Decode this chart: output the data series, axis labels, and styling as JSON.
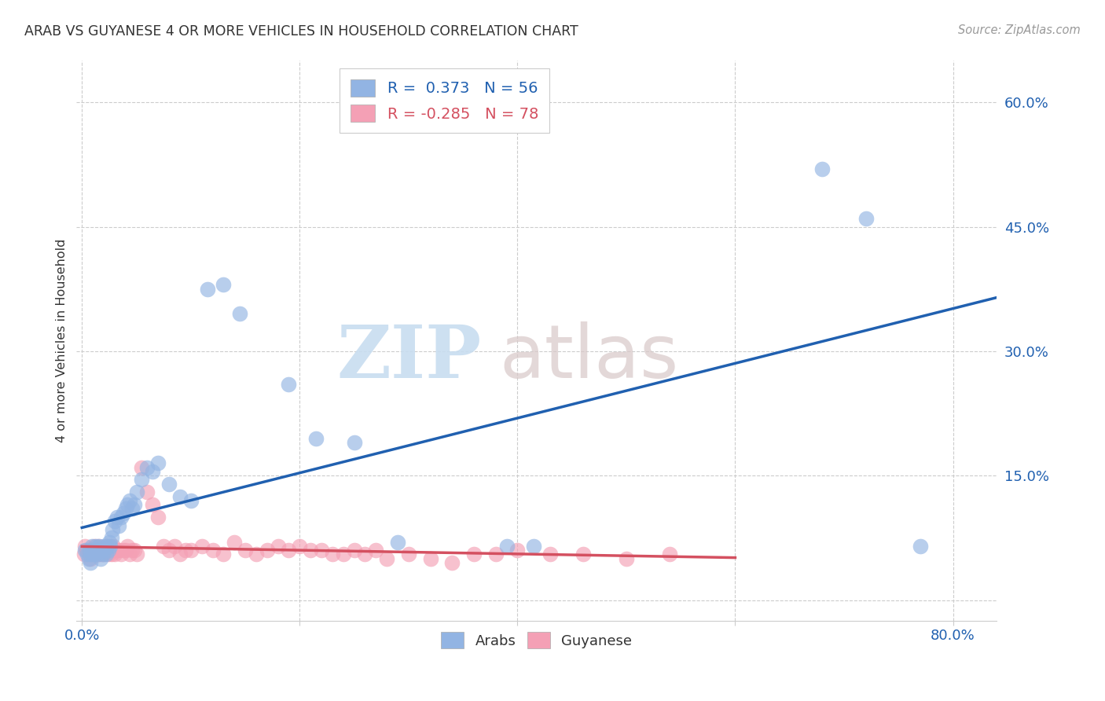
{
  "title": "ARAB VS GUYANESE 4 OR MORE VEHICLES IN HOUSEHOLD CORRELATION CHART",
  "source": "Source: ZipAtlas.com",
  "ylabel": "4 or more Vehicles in Household",
  "yticks": [
    0.0,
    0.15,
    0.3,
    0.45,
    0.6
  ],
  "ytick_labels": [
    "",
    "15.0%",
    "30.0%",
    "45.0%",
    "60.0%"
  ],
  "xticks": [
    0.0,
    0.2,
    0.4,
    0.6,
    0.8
  ],
  "xlim": [
    -0.005,
    0.84
  ],
  "ylim": [
    -0.025,
    0.65
  ],
  "legend_arab_r": "0.373",
  "legend_arab_n": "56",
  "legend_guyanese_r": "-0.285",
  "legend_guyanese_n": "78",
  "arab_color": "#92b4e3",
  "guyanese_color": "#f4a0b5",
  "arab_line_color": "#2060b0",
  "guyanese_line_color": "#d45060",
  "watermark_zip": "ZIP",
  "watermark_atlas": "atlas",
  "arab_x": [
    0.003,
    0.005,
    0.006,
    0.007,
    0.008,
    0.008,
    0.009,
    0.01,
    0.011,
    0.012,
    0.013,
    0.014,
    0.015,
    0.016,
    0.017,
    0.018,
    0.019,
    0.02,
    0.021,
    0.022,
    0.023,
    0.024,
    0.025,
    0.026,
    0.027,
    0.028,
    0.03,
    0.032,
    0.034,
    0.036,
    0.038,
    0.04,
    0.042,
    0.044,
    0.046,
    0.048,
    0.05,
    0.055,
    0.06,
    0.065,
    0.07,
    0.08,
    0.09,
    0.1,
    0.115,
    0.13,
    0.145,
    0.19,
    0.215,
    0.25,
    0.29,
    0.39,
    0.415,
    0.68,
    0.72,
    0.77
  ],
  "arab_y": [
    0.06,
    0.055,
    0.05,
    0.06,
    0.055,
    0.045,
    0.065,
    0.055,
    0.06,
    0.055,
    0.065,
    0.06,
    0.055,
    0.065,
    0.05,
    0.06,
    0.055,
    0.065,
    0.06,
    0.055,
    0.065,
    0.06,
    0.07,
    0.065,
    0.075,
    0.085,
    0.095,
    0.1,
    0.09,
    0.1,
    0.105,
    0.11,
    0.115,
    0.12,
    0.11,
    0.115,
    0.13,
    0.145,
    0.16,
    0.155,
    0.165,
    0.14,
    0.125,
    0.12,
    0.375,
    0.38,
    0.345,
    0.26,
    0.195,
    0.19,
    0.07,
    0.065,
    0.065,
    0.52,
    0.46,
    0.065
  ],
  "guyanese_x": [
    0.002,
    0.003,
    0.004,
    0.005,
    0.006,
    0.007,
    0.008,
    0.008,
    0.009,
    0.01,
    0.011,
    0.012,
    0.013,
    0.014,
    0.015,
    0.016,
    0.017,
    0.018,
    0.019,
    0.02,
    0.021,
    0.022,
    0.023,
    0.024,
    0.025,
    0.026,
    0.027,
    0.028,
    0.029,
    0.03,
    0.032,
    0.034,
    0.036,
    0.038,
    0.04,
    0.042,
    0.044,
    0.046,
    0.048,
    0.05,
    0.055,
    0.06,
    0.065,
    0.07,
    0.075,
    0.08,
    0.085,
    0.09,
    0.095,
    0.1,
    0.11,
    0.12,
    0.13,
    0.14,
    0.15,
    0.16,
    0.17,
    0.18,
    0.19,
    0.2,
    0.21,
    0.22,
    0.23,
    0.24,
    0.25,
    0.26,
    0.27,
    0.28,
    0.3,
    0.32,
    0.34,
    0.36,
    0.38,
    0.4,
    0.43,
    0.46,
    0.5,
    0.54
  ],
  "guyanese_y": [
    0.055,
    0.065,
    0.06,
    0.06,
    0.055,
    0.06,
    0.05,
    0.06,
    0.06,
    0.055,
    0.065,
    0.055,
    0.06,
    0.055,
    0.065,
    0.055,
    0.06,
    0.055,
    0.06,
    0.055,
    0.06,
    0.065,
    0.06,
    0.055,
    0.06,
    0.065,
    0.055,
    0.06,
    0.065,
    0.055,
    0.06,
    0.06,
    0.055,
    0.06,
    0.06,
    0.065,
    0.055,
    0.06,
    0.06,
    0.055,
    0.16,
    0.13,
    0.115,
    0.1,
    0.065,
    0.06,
    0.065,
    0.055,
    0.06,
    0.06,
    0.065,
    0.06,
    0.055,
    0.07,
    0.06,
    0.055,
    0.06,
    0.065,
    0.06,
    0.065,
    0.06,
    0.06,
    0.055,
    0.055,
    0.06,
    0.055,
    0.06,
    0.05,
    0.055,
    0.05,
    0.045,
    0.055,
    0.055,
    0.06,
    0.055,
    0.055,
    0.05,
    0.055
  ]
}
